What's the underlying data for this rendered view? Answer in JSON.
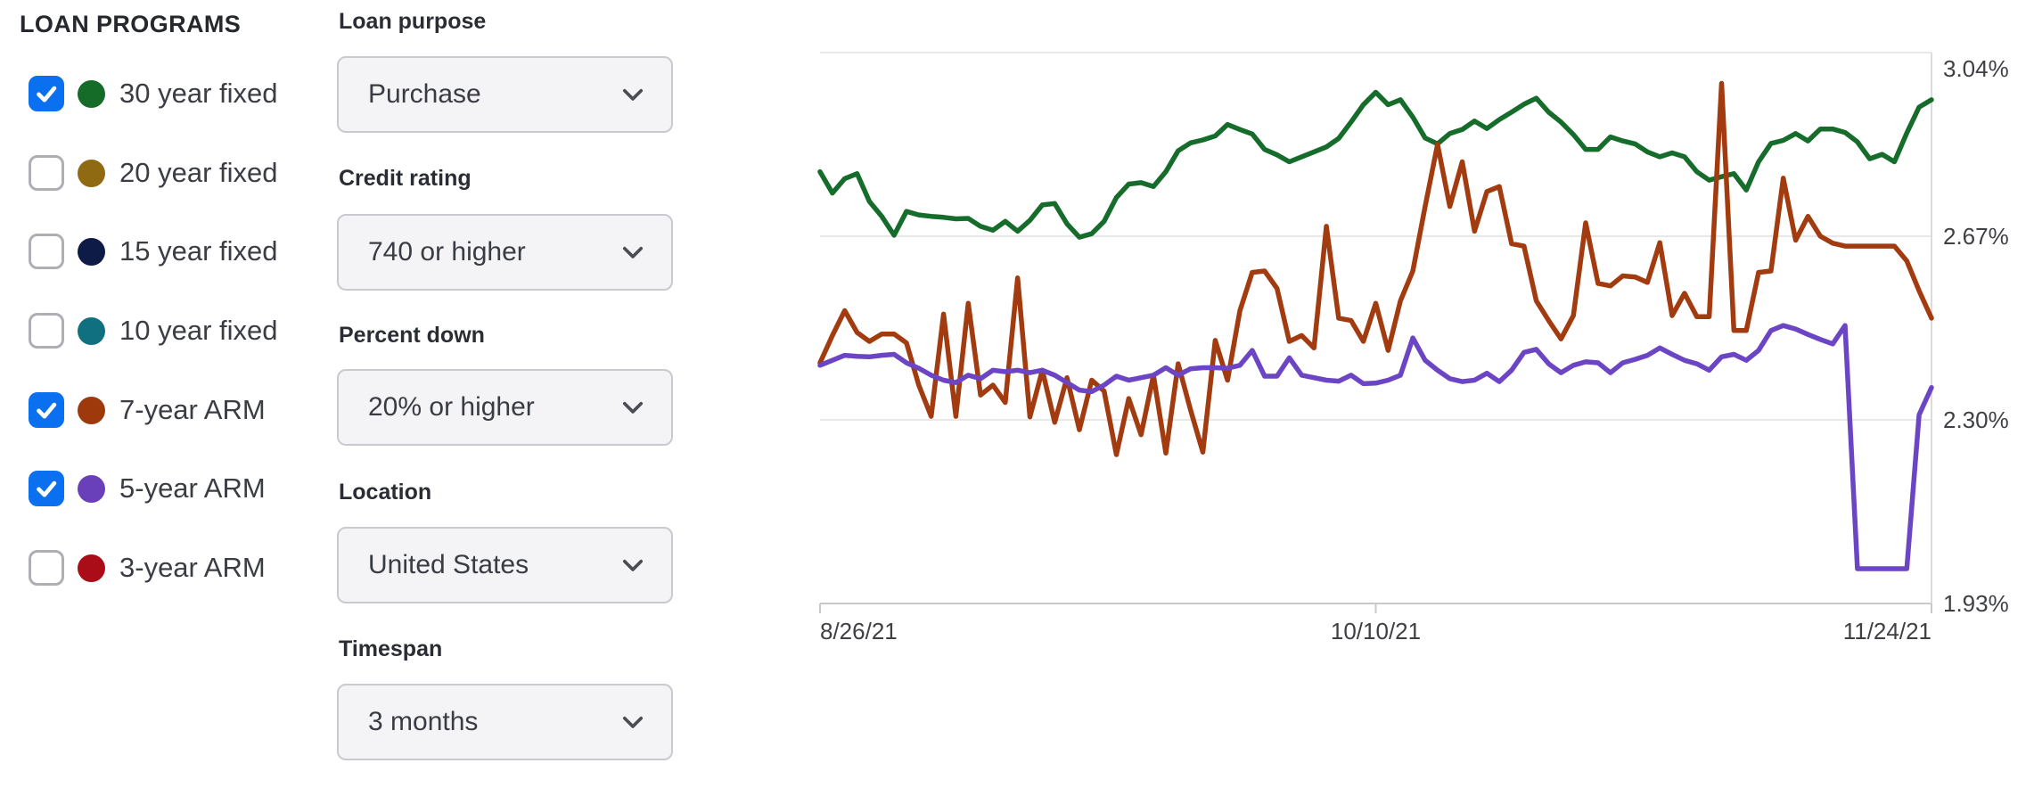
{
  "sidebar": {
    "title": "LOAN PROGRAMS",
    "checkbox_accent": "#0b70f0",
    "items": [
      {
        "label": "30 year fixed",
        "color": "#156c28",
        "checked": true
      },
      {
        "label": "20 year fixed",
        "color": "#8f6a12",
        "checked": false
      },
      {
        "label": "15 year fixed",
        "color": "#0e1b47",
        "checked": false
      },
      {
        "label": "10 year fixed",
        "color": "#10707f",
        "checked": false
      },
      {
        "label": "7-year ARM",
        "color": "#9e390c",
        "checked": true
      },
      {
        "label": "5-year ARM",
        "color": "#6a3fba",
        "checked": true
      },
      {
        "label": "3-year ARM",
        "color": "#aa0d17",
        "checked": false
      }
    ]
  },
  "filters": {
    "groups": [
      {
        "label": "Loan purpose",
        "value": "Purchase"
      },
      {
        "label": "Credit rating",
        "value": "740 or higher"
      },
      {
        "label": "Percent down",
        "value": "20% or higher"
      },
      {
        "label": "Location",
        "value": "United States"
      },
      {
        "label": "Timespan",
        "value": "3 months"
      }
    ]
  },
  "chart_data": {
    "type": "line",
    "title": "",
    "xlabel": "",
    "ylabel": "",
    "grid": "horizontal-only",
    "legend": "external-checkbox-list",
    "ylim": [
      1.93,
      3.04
    ],
    "x_range_days": [
      0,
      90
    ],
    "y_ticks": [
      {
        "label": "3.04%",
        "value": 3.04
      },
      {
        "label": "2.67%",
        "value": 2.67
      },
      {
        "label": "2.30%",
        "value": 2.3
      },
      {
        "label": "1.93%",
        "value": 1.93
      }
    ],
    "x_ticks": [
      {
        "label": "8/26/21",
        "day": 0,
        "align": "left"
      },
      {
        "label": "10/10/21",
        "day": 45,
        "align": "center"
      },
      {
        "label": "11/24/21",
        "day": 90,
        "align": "right"
      }
    ],
    "series": [
      {
        "name": "30 year fixed",
        "color": "#156c2b",
        "values": [
          2.8,
          2.757,
          2.786,
          2.796,
          2.74,
          2.71,
          2.672,
          2.72,
          2.713,
          2.71,
          2.708,
          2.705,
          2.706,
          2.69,
          2.682,
          2.7,
          2.68,
          2.702,
          2.733,
          2.736,
          2.695,
          2.668,
          2.675,
          2.7,
          2.748,
          2.775,
          2.778,
          2.77,
          2.8,
          2.842,
          2.858,
          2.864,
          2.872,
          2.895,
          2.885,
          2.876,
          2.845,
          2.834,
          2.82,
          2.83,
          2.84,
          2.85,
          2.867,
          2.9,
          2.935,
          2.96,
          2.935,
          2.945,
          2.91,
          2.868,
          2.856,
          2.877,
          2.885,
          2.902,
          2.887,
          2.905,
          2.92,
          2.936,
          2.948,
          2.92,
          2.9,
          2.875,
          2.845,
          2.845,
          2.87,
          2.862,
          2.856,
          2.84,
          2.83,
          2.838,
          2.83,
          2.8,
          2.783,
          2.79,
          2.796,
          2.763,
          2.82,
          2.857,
          2.863,
          2.877,
          2.862,
          2.886,
          2.886,
          2.879,
          2.86,
          2.826,
          2.835,
          2.82,
          2.878,
          2.93,
          2.945
        ]
      },
      {
        "name": "7-year ARM",
        "color": "#a23b0f",
        "values": [
          2.415,
          2.47,
          2.52,
          2.476,
          2.458,
          2.473,
          2.473,
          2.455,
          2.37,
          2.307,
          2.513,
          2.307,
          2.535,
          2.35,
          2.37,
          2.335,
          2.586,
          2.306,
          2.4,
          2.295,
          2.385,
          2.28,
          2.38,
          2.358,
          2.23,
          2.343,
          2.27,
          2.39,
          2.233,
          2.413,
          2.32,
          2.235,
          2.46,
          2.38,
          2.52,
          2.597,
          2.6,
          2.565,
          2.458,
          2.47,
          2.445,
          2.69,
          2.505,
          2.5,
          2.458,
          2.535,
          2.44,
          2.54,
          2.6,
          2.73,
          2.855,
          2.73,
          2.82,
          2.68,
          2.76,
          2.77,
          2.655,
          2.65,
          2.54,
          2.5,
          2.463,
          2.51,
          2.697,
          2.575,
          2.57,
          2.59,
          2.588,
          2.577,
          2.657,
          2.51,
          2.555,
          2.508,
          2.508,
          2.978,
          2.48,
          2.48,
          2.597,
          2.6,
          2.787,
          2.662,
          2.71,
          2.67,
          2.656,
          2.65,
          2.65,
          2.65,
          2.65,
          2.65,
          2.62,
          2.56,
          2.505
        ]
      },
      {
        "name": "5-year ARM",
        "color": "#6b45c4",
        "values": [
          2.41,
          2.42,
          2.43,
          2.428,
          2.427,
          2.43,
          2.432,
          2.415,
          2.404,
          2.39,
          2.38,
          2.375,
          2.39,
          2.383,
          2.4,
          2.397,
          2.4,
          2.395,
          2.4,
          2.39,
          2.375,
          2.36,
          2.357,
          2.37,
          2.388,
          2.38,
          2.385,
          2.39,
          2.405,
          2.39,
          2.403,
          2.405,
          2.405,
          2.404,
          2.41,
          2.44,
          2.388,
          2.388,
          2.425,
          2.39,
          2.385,
          2.38,
          2.378,
          2.39,
          2.373,
          2.374,
          2.38,
          2.39,
          2.465,
          2.42,
          2.4,
          2.383,
          2.377,
          2.38,
          2.394,
          2.377,
          2.4,
          2.436,
          2.442,
          2.413,
          2.395,
          2.41,
          2.417,
          2.415,
          2.395,
          2.415,
          2.422,
          2.43,
          2.445,
          2.432,
          2.42,
          2.413,
          2.4,
          2.427,
          2.432,
          2.42,
          2.44,
          2.48,
          2.49,
          2.483,
          2.472,
          2.462,
          2.453,
          2.49,
          2.0,
          2.0,
          2.0,
          2.0,
          2.0,
          2.31,
          2.365
        ]
      }
    ]
  }
}
